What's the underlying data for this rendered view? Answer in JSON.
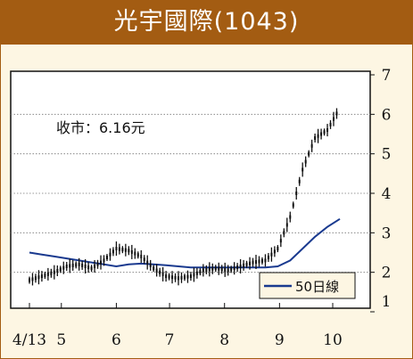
{
  "title": "光宇國際(1043)",
  "chart_data": {
    "type": "candlestick",
    "x_ticks": [
      "4/13",
      "5",
      "6",
      "7",
      "8",
      "9",
      "10"
    ],
    "y_ticks": [
      "1",
      "2",
      "3",
      "4",
      "5",
      "6",
      "7"
    ],
    "ylim": [
      1,
      7
    ],
    "grid": true,
    "legend_placement": "bottom-right",
    "annotation": "收市：6.16元",
    "price_series": {
      "dates": [
        "2018-04-13",
        "2018-04-20",
        "2018-04-27",
        "2018-05-04",
        "2018-05-11",
        "2018-05-18",
        "2018-05-25",
        "2018-06-01",
        "2018-06-08",
        "2018-06-15",
        "2018-06-22",
        "2018-06-29",
        "2018-07-06",
        "2018-07-13",
        "2018-07-20",
        "2018-07-27",
        "2018-08-03",
        "2018-08-10",
        "2018-08-17",
        "2018-08-24",
        "2018-08-31",
        "2018-09-07",
        "2018-09-14",
        "2018-09-21",
        "2018-09-28",
        "2018-10-05"
      ],
      "close": [
        1.8,
        1.9,
        2.0,
        2.15,
        2.2,
        2.1,
        2.3,
        2.6,
        2.55,
        2.4,
        2.1,
        1.9,
        1.85,
        1.9,
        2.05,
        2.1,
        2.05,
        2.15,
        2.25,
        2.3,
        2.6,
        3.4,
        4.6,
        5.4,
        5.6,
        6.16
      ]
    },
    "series": [
      {
        "name": "50日線",
        "color": "#1a3a8f",
        "values": [
          2.5,
          2.45,
          2.4,
          2.35,
          2.3,
          2.25,
          2.2,
          2.15,
          2.2,
          2.22,
          2.2,
          2.18,
          2.15,
          2.12,
          2.12,
          2.12,
          2.12,
          2.12,
          2.12,
          2.12,
          2.15,
          2.3,
          2.6,
          2.9,
          3.15,
          3.35
        ]
      }
    ]
  }
}
